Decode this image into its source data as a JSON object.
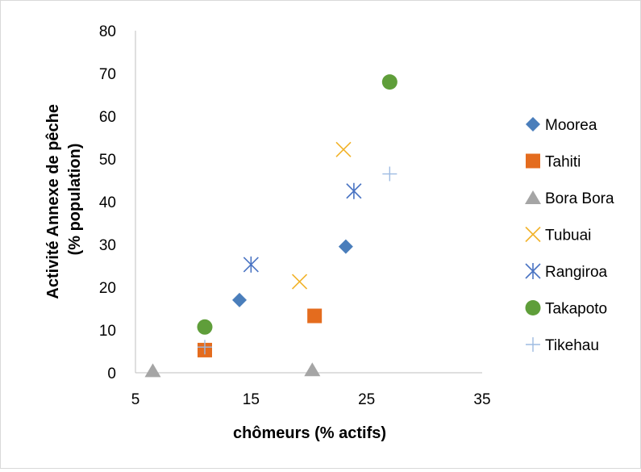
{
  "chart_data": {
    "type": "scatter",
    "title": "",
    "xlabel": "chômeurs (% actifs)",
    "ylabel_lines": [
      "Activité Annexe de pêche",
      "(% population)"
    ],
    "xlim": [
      5,
      35
    ],
    "ylim": [
      0,
      80
    ],
    "xticks": [
      5,
      15,
      25,
      35
    ],
    "yticks": [
      0,
      10,
      20,
      30,
      40,
      50,
      60,
      70,
      80
    ],
    "grid": false,
    "legend_position": "right",
    "series": [
      {
        "name": "Moorea",
        "marker": "diamond",
        "color": "#4a7ebb",
        "points": [
          {
            "x": 14.0,
            "y": 17.0
          },
          {
            "x": 23.2,
            "y": 29.5
          }
        ]
      },
      {
        "name": "Tahiti",
        "marker": "square",
        "color": "#e46c1e",
        "points": [
          {
            "x": 11.0,
            "y": 5.3
          },
          {
            "x": 20.5,
            "y": 13.3
          }
        ]
      },
      {
        "name": "Bora Bora",
        "marker": "triangle",
        "color": "#a5a5a5",
        "points": [
          {
            "x": 6.5,
            "y": 0.5
          },
          {
            "x": 20.3,
            "y": 0.7
          }
        ]
      },
      {
        "name": "Tubuai",
        "marker": "x",
        "color": "#f2b32a",
        "points": [
          {
            "x": 19.2,
            "y": 21.3
          },
          {
            "x": 23.0,
            "y": 52.2
          }
        ]
      },
      {
        "name": "Rangiroa",
        "marker": "asterisk",
        "color": "#4a74c3",
        "points": [
          {
            "x": 15.0,
            "y": 25.3
          },
          {
            "x": 23.9,
            "y": 42.5
          }
        ]
      },
      {
        "name": "Takapoto",
        "marker": "circle",
        "color": "#5f9e3a",
        "points": [
          {
            "x": 11.0,
            "y": 10.7
          },
          {
            "x": 27.0,
            "y": 68.0
          }
        ]
      },
      {
        "name": "Tikehau",
        "marker": "plus",
        "color": "#9ebbe2",
        "points": [
          {
            "x": 11.0,
            "y": 6.0
          },
          {
            "x": 27.0,
            "y": 46.5
          }
        ]
      }
    ]
  }
}
